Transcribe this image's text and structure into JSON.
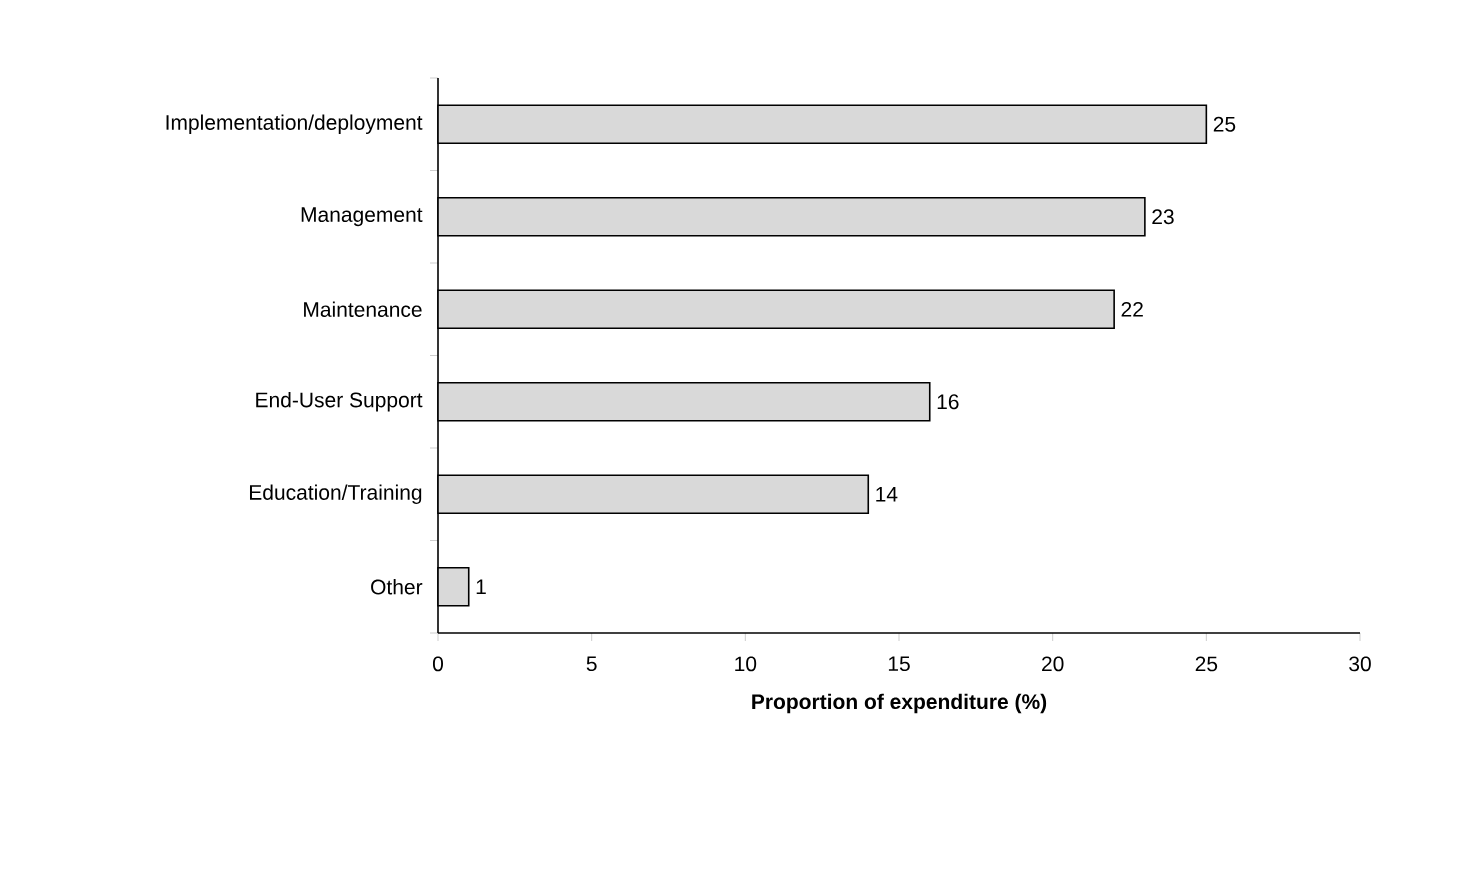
{
  "chart_data": {
    "type": "bar",
    "orientation": "horizontal",
    "categories": [
      "Implementation/deployment",
      "Management",
      "Maintenance",
      "End-User Support",
      "Education/Training",
      "Other"
    ],
    "values": [
      25,
      23,
      22,
      16,
      14,
      1
    ],
    "color": "#d9d9d9",
    "xlabel": "Proportion of expenditure (%)",
    "xlim": [
      0,
      30
    ],
    "xticks": [
      0,
      5,
      10,
      15,
      20,
      25,
      30
    ],
    "data_labels": true
  }
}
